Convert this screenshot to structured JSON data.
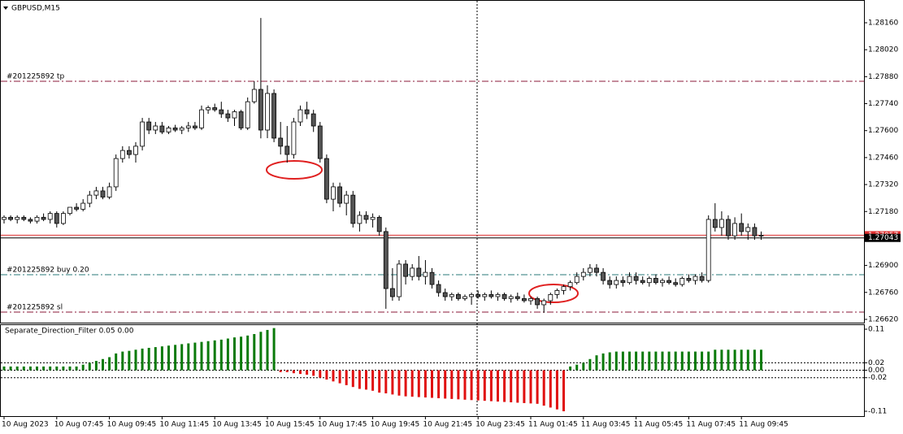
{
  "chart_data": [
    {
      "type": "candlestick",
      "title": "GBPUSD,M15",
      "ylim": [
        1.26603,
        1.28257
      ],
      "yticks": [
        {
          "value": 1.2816,
          "label": "1.28160"
        },
        {
          "value": 1.2802,
          "label": "1.28020"
        },
        {
          "value": 1.2788,
          "label": "1.27880"
        },
        {
          "value": 1.2774,
          "label": "1.27740"
        },
        {
          "value": 1.276,
          "label": "1.27600"
        },
        {
          "value": 1.2746,
          "label": "1.27460"
        },
        {
          "value": 1.2732,
          "label": "1.27320"
        },
        {
          "value": 1.2718,
          "label": "1.27180"
        },
        {
          "value": 1.269,
          "label": "1.26900"
        },
        {
          "value": 1.2676,
          "label": "1.26760"
        },
        {
          "value": 1.2662,
          "label": "1.26620"
        }
      ],
      "up_color": "#ffffff",
      "down_color": "#555555",
      "wick_color": "#000000",
      "order_lines": [
        {
          "label": "#201225892 tp",
          "value": 1.27856,
          "color": "#8b1a3a"
        },
        {
          "label": "#201225892 buy 0.20",
          "value": 1.26852,
          "color": "#2a7a7a"
        },
        {
          "label": "#201225892 sl",
          "value": 1.26658,
          "color": "#8b1a3a"
        }
      ],
      "price_lines": [
        {
          "value": 1.27057,
          "label": "1.27057",
          "color": "#e03030"
        },
        {
          "value": 1.27043,
          "label": "1.27043",
          "color": "#000000"
        }
      ],
      "categories": [
        "10 Aug 2023",
        null,
        null,
        null,
        null,
        null,
        null,
        null,
        "10 Aug 07:45",
        null,
        null,
        null,
        null,
        null,
        null,
        null,
        "10 Aug 09:45",
        null,
        null,
        null,
        null,
        null,
        null,
        null,
        "10 Aug 11:45",
        null,
        null,
        null,
        null,
        null,
        null,
        null,
        "10 Aug 13:45",
        null,
        null,
        null,
        null,
        null,
        null,
        null,
        "10 Aug 15:45",
        null,
        null,
        null,
        null,
        null,
        null,
        null,
        "10 Aug 17:45",
        null,
        null,
        null,
        null,
        null,
        null,
        null,
        "10 Aug 19:45",
        null,
        null,
        null,
        null,
        null,
        null,
        null,
        "10 Aug 21:45",
        null,
        null,
        null,
        null,
        null,
        null,
        null,
        "10 Aug 23:45",
        null,
        null,
        null,
        null,
        null,
        null,
        null,
        "11 Aug 01:45",
        null,
        null,
        null,
        null,
        null,
        null,
        null,
        "11 Aug 03:45",
        null,
        null,
        null,
        null,
        null,
        null,
        null,
        "11 Aug 05:45",
        null,
        null,
        null,
        null,
        null,
        null,
        null,
        "11 Aug 07:45",
        null,
        null,
        null,
        null,
        null,
        null,
        null,
        "11 Aug 09:45",
        null,
        null,
        null
      ],
      "ohlc": [
        [
          1.27139,
          1.2716,
          1.27118,
          1.2715
        ],
        [
          1.2715,
          1.2716,
          1.2713,
          1.27139
        ],
        [
          1.27139,
          1.2716,
          1.27118,
          1.2715
        ],
        [
          1.2715,
          1.2716,
          1.2713,
          1.27139
        ],
        [
          1.27139,
          1.2715,
          1.27118,
          1.2713
        ],
        [
          1.2713,
          1.2716,
          1.27118,
          1.2715
        ],
        [
          1.2715,
          1.2717,
          1.2713,
          1.27139
        ],
        [
          1.27139,
          1.27181,
          1.27118,
          1.2717
        ],
        [
          1.2717,
          1.27181,
          1.27097,
          1.27118
        ],
        [
          1.27118,
          1.27181,
          1.2711,
          1.2717
        ],
        [
          1.2717,
          1.27202,
          1.2716,
          1.27202
        ],
        [
          1.27202,
          1.27223,
          1.27181,
          1.27192
        ],
        [
          1.27192,
          1.27244,
          1.27181,
          1.27223
        ],
        [
          1.27223,
          1.27287,
          1.27202,
          1.27265
        ],
        [
          1.27265,
          1.27308,
          1.27244,
          1.27287
        ],
        [
          1.27287,
          1.27308,
          1.27244,
          1.27255
        ],
        [
          1.27255,
          1.2733,
          1.27244,
          1.27308
        ],
        [
          1.27308,
          1.27476,
          1.27287,
          1.27455
        ],
        [
          1.27455,
          1.27519,
          1.27434,
          1.27497
        ],
        [
          1.27497,
          1.27519,
          1.27455,
          1.27476
        ],
        [
          1.27476,
          1.2754,
          1.27434,
          1.27519
        ],
        [
          1.27519,
          1.27666,
          1.27497,
          1.27645
        ],
        [
          1.27645,
          1.27666,
          1.27582,
          1.27603
        ],
        [
          1.27603,
          1.27645,
          1.27582,
          1.27624
        ],
        [
          1.27624,
          1.27645,
          1.27582,
          1.27593
        ],
        [
          1.27593,
          1.27624,
          1.27582,
          1.27614
        ],
        [
          1.27614,
          1.2763,
          1.27593,
          1.27603
        ],
        [
          1.27603,
          1.27624,
          1.27582,
          1.27614
        ],
        [
          1.27614,
          1.27645,
          1.27593,
          1.27624
        ],
        [
          1.27624,
          1.27645,
          1.27603,
          1.27614
        ],
        [
          1.27614,
          1.2773,
          1.27603,
          1.27708
        ],
        [
          1.27708,
          1.2773,
          1.27687,
          1.27719
        ],
        [
          1.27719,
          1.2774,
          1.27698,
          1.27708
        ],
        [
          1.27708,
          1.2775,
          1.27666,
          1.27687
        ],
        [
          1.27687,
          1.27708,
          1.27645,
          1.27666
        ],
        [
          1.27666,
          1.27708,
          1.27624,
          1.27698
        ],
        [
          1.27698,
          1.27708,
          1.27603,
          1.27614
        ],
        [
          1.27614,
          1.27772,
          1.27603,
          1.2775
        ],
        [
          1.2775,
          1.27856,
          1.2774,
          1.27814
        ],
        [
          1.27814,
          1.28185,
          1.2756,
          1.27603
        ],
        [
          1.27603,
          1.27835,
          1.27561,
          1.27793
        ],
        [
          1.27793,
          1.27814,
          1.2754,
          1.27561
        ],
        [
          1.27561,
          1.27645,
          1.27476,
          1.27519
        ],
        [
          1.27519,
          1.27624,
          1.27434,
          1.27476
        ],
        [
          1.27476,
          1.27666,
          1.27455,
          1.27645
        ],
        [
          1.27645,
          1.2773,
          1.27624,
          1.27708
        ],
        [
          1.27708,
          1.2775,
          1.2766,
          1.27687
        ],
        [
          1.27687,
          1.27708,
          1.27593,
          1.27624
        ],
        [
          1.27624,
          1.27645,
          1.27434,
          1.27455
        ],
        [
          1.27455,
          1.27476,
          1.27223,
          1.27244
        ],
        [
          1.27244,
          1.2733,
          1.27181,
          1.27308
        ],
        [
          1.27308,
          1.2733,
          1.27202,
          1.27223
        ],
        [
          1.27223,
          1.27287,
          1.2716,
          1.27265
        ],
        [
          1.27265,
          1.27287,
          1.27097,
          1.27118
        ],
        [
          1.27118,
          1.27181,
          1.27076,
          1.2716
        ],
        [
          1.2716,
          1.27181,
          1.27118,
          1.27139
        ],
        [
          1.27139,
          1.2717,
          1.27097,
          1.2715
        ],
        [
          1.2715,
          1.2716,
          1.27054,
          1.27076
        ],
        [
          1.27076,
          1.27097,
          1.26675,
          1.2678
        ],
        [
          1.2678,
          1.26886,
          1.26717,
          1.26738
        ],
        [
          1.26738,
          1.26928,
          1.26717,
          1.26907
        ],
        [
          1.26907,
          1.26928,
          1.26801,
          1.26843
        ],
        [
          1.26843,
          1.26907,
          1.26822,
          1.26886
        ],
        [
          1.26886,
          1.26949,
          1.26822,
          1.26843
        ],
        [
          1.26843,
          1.26928,
          1.26801,
          1.26864
        ],
        [
          1.26864,
          1.26886,
          1.2678,
          1.26801
        ],
        [
          1.26801,
          1.26822,
          1.26738,
          1.26759
        ],
        [
          1.26759,
          1.2678,
          1.26717,
          1.26738
        ],
        [
          1.26738,
          1.26759,
          1.26717,
          1.26749
        ],
        [
          1.26749,
          1.26759,
          1.26717,
          1.26728
        ],
        [
          1.26728,
          1.26749,
          1.26717,
          1.26738
        ],
        [
          1.26738,
          1.26759,
          1.26696,
          1.26749
        ],
        [
          1.26749,
          1.2677,
          1.26728,
          1.26738
        ],
        [
          1.26738,
          1.26759,
          1.26717,
          1.26749
        ],
        [
          1.26749,
          1.2677,
          1.26728,
          1.26738
        ],
        [
          1.26738,
          1.26759,
          1.26717,
          1.26749
        ],
        [
          1.26749,
          1.26759,
          1.26717,
          1.26728
        ],
        [
          1.26728,
          1.26749,
          1.26707,
          1.26738
        ],
        [
          1.26738,
          1.26759,
          1.26717,
          1.26728
        ],
        [
          1.26728,
          1.26749,
          1.26707,
          1.26717
        ],
        [
          1.26717,
          1.26738,
          1.26696,
          1.26728
        ],
        [
          1.26728,
          1.26738,
          1.26675,
          1.26696
        ],
        [
          1.26696,
          1.26728,
          1.26654,
          1.26717
        ],
        [
          1.26717,
          1.26759,
          1.26696,
          1.26749
        ],
        [
          1.26749,
          1.2678,
          1.26728,
          1.2677
        ],
        [
          1.2677,
          1.26801,
          1.26749,
          1.2679
        ],
        [
          1.2679,
          1.26822,
          1.2677,
          1.26811
        ],
        [
          1.26811,
          1.26864,
          1.26801,
          1.26843
        ],
        [
          1.26843,
          1.26886,
          1.26822,
          1.26864
        ],
        [
          1.26864,
          1.26907,
          1.26843,
          1.26886
        ],
        [
          1.26886,
          1.26907,
          1.26843,
          1.26864
        ],
        [
          1.26864,
          1.26886,
          1.26801,
          1.26822
        ],
        [
          1.26822,
          1.26843,
          1.2678,
          1.26801
        ],
        [
          1.26801,
          1.26843,
          1.2678,
          1.26822
        ],
        [
          1.26822,
          1.26843,
          1.2679,
          1.26811
        ],
        [
          1.26811,
          1.26864,
          1.26801,
          1.26843
        ],
        [
          1.26843,
          1.26864,
          1.26801,
          1.26822
        ],
        [
          1.26822,
          1.26843,
          1.26801,
          1.26811
        ],
        [
          1.26811,
          1.26843,
          1.2679,
          1.26833
        ],
        [
          1.26833,
          1.26854,
          1.26801,
          1.26811
        ],
        [
          1.26811,
          1.26833,
          1.2679,
          1.26822
        ],
        [
          1.26822,
          1.26843,
          1.26801,
          1.26811
        ],
        [
          1.26811,
          1.26833,
          1.2679,
          1.26801
        ],
        [
          1.26801,
          1.26843,
          1.2679,
          1.26833
        ],
        [
          1.26833,
          1.26854,
          1.26811,
          1.26822
        ],
        [
          1.26822,
          1.26854,
          1.26801,
          1.26843
        ],
        [
          1.26843,
          1.26864,
          1.26811,
          1.26822
        ],
        [
          1.26822,
          1.2716,
          1.26811,
          1.27139
        ],
        [
          1.27139,
          1.27223,
          1.27076,
          1.27097
        ],
        [
          1.27097,
          1.27181,
          1.27054,
          1.27139
        ],
        [
          1.27139,
          1.2716,
          1.27033,
          1.27054
        ],
        [
          1.27054,
          1.2715,
          1.27033,
          1.27118
        ],
        [
          1.27118,
          1.2717,
          1.27054,
          1.27076
        ],
        [
          1.27076,
          1.27118,
          1.27033,
          1.27097
        ],
        [
          1.27097,
          1.27118,
          1.27033,
          1.27054
        ],
        [
          1.27054,
          1.27076,
          1.27033,
          1.27057
        ]
      ]
    },
    {
      "type": "bar",
      "title": "Separate_Direction_Filter 0.05 0.00",
      "ylim": [
        -0.123,
        0.121
      ],
      "yticks": [
        0.11,
        0.02,
        {
          "value": 0,
          "label": "0.00"
        },
        -0.02,
        -0.11
      ],
      "levels": [
        0.02,
        0,
        -0.02
      ],
      "positive_color": "#0a7a0a",
      "negative_color": "#e01010",
      "values": [
        0.01,
        0.01,
        0.01,
        0.01,
        0.01,
        0.01,
        0.01,
        0.01,
        0.01,
        0.01,
        0.01,
        0.01,
        0.015,
        0.02,
        0.025,
        0.03,
        0.035,
        0.045,
        0.05,
        0.052,
        0.055,
        0.058,
        0.06,
        0.062,
        0.064,
        0.066,
        0.068,
        0.07,
        0.072,
        0.074,
        0.076,
        0.078,
        0.08,
        0.082,
        0.085,
        0.088,
        0.09,
        0.093,
        0.097,
        0.103,
        0.108,
        0.113,
        -0.005,
        -0.005,
        -0.008,
        -0.01,
        -0.012,
        -0.015,
        -0.02,
        -0.025,
        -0.03,
        -0.035,
        -0.04,
        -0.045,
        -0.05,
        -0.052,
        -0.055,
        -0.06,
        -0.062,
        -0.065,
        -0.068,
        -0.07,
        -0.071,
        -0.072,
        -0.073,
        -0.074,
        -0.075,
        -0.076,
        -0.077,
        -0.078,
        -0.079,
        -0.08,
        -0.081,
        -0.082,
        -0.083,
        -0.084,
        -0.085,
        -0.086,
        -0.087,
        -0.088,
        -0.089,
        -0.09,
        -0.095,
        -0.1,
        -0.105,
        -0.11,
        0.01,
        0.015,
        0.02,
        0.03,
        0.04,
        0.045,
        0.048,
        0.05,
        0.05,
        0.05,
        0.05,
        0.05,
        0.05,
        0.05,
        0.05,
        0.05,
        0.05,
        0.05,
        0.05,
        0.05,
        0.05,
        0.05,
        0.055,
        0.055,
        0.055,
        0.055,
        0.055,
        0.055,
        0.055,
        0.055
      ]
    }
  ]
}
